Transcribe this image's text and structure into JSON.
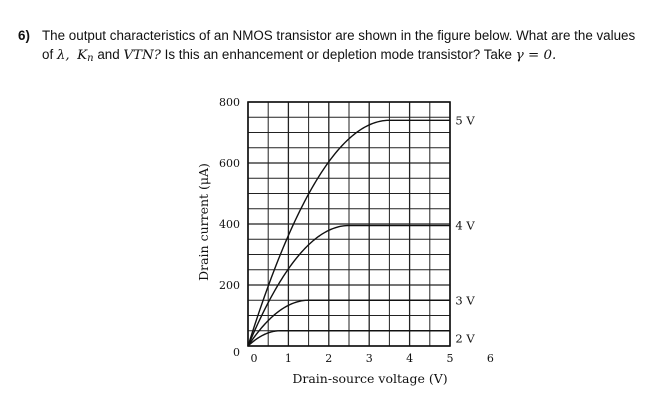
{
  "question": {
    "number": "6)",
    "line1_text": "The output characteristics of an NMOS transistor are shown in the figure below. What are the values",
    "line2_prefix": "of",
    "symbol_lambda": "λ,",
    "symbol_K": "K",
    "symbol_K_sub": "n",
    "symbol_and": "and",
    "symbol_VTN": "VTN?",
    "line2_text": "Is this an enhancement or depletion mode transistor? Take",
    "symbol_gamma_eq": "γ = 0."
  },
  "chart_data": {
    "type": "line",
    "title": "",
    "xlabel": "Drain-source voltage (V)",
    "ylabel": "Drain current (μA)",
    "xlim": [
      0,
      6
    ],
    "ylim": [
      0,
      800
    ],
    "x_ticks": [
      "0",
      "1",
      "2",
      "3",
      "4",
      "5",
      "6"
    ],
    "y_ticks": [
      "0",
      "200",
      "400",
      "600",
      "800"
    ],
    "x_ticks_values": [
      0,
      1,
      2,
      3,
      4,
      5,
      6
    ],
    "y_ticks_values": [
      0,
      200,
      400,
      600,
      800
    ],
    "grid": true,
    "x_minor_divisions": 2,
    "y_minor_divisions": 4,
    "series": [
      {
        "name": "5 V",
        "vov": 3.5,
        "isat": 740,
        "label_y": 740
      },
      {
        "name": "4 V",
        "vov": 2.5,
        "isat": 395,
        "label_y": 395
      },
      {
        "name": "3 V",
        "vov": 1.5,
        "isat": 150,
        "label_y": 150
      },
      {
        "name": "2 V",
        "vov": 0.8,
        "isat": 50,
        "label_y": 25
      }
    ]
  }
}
